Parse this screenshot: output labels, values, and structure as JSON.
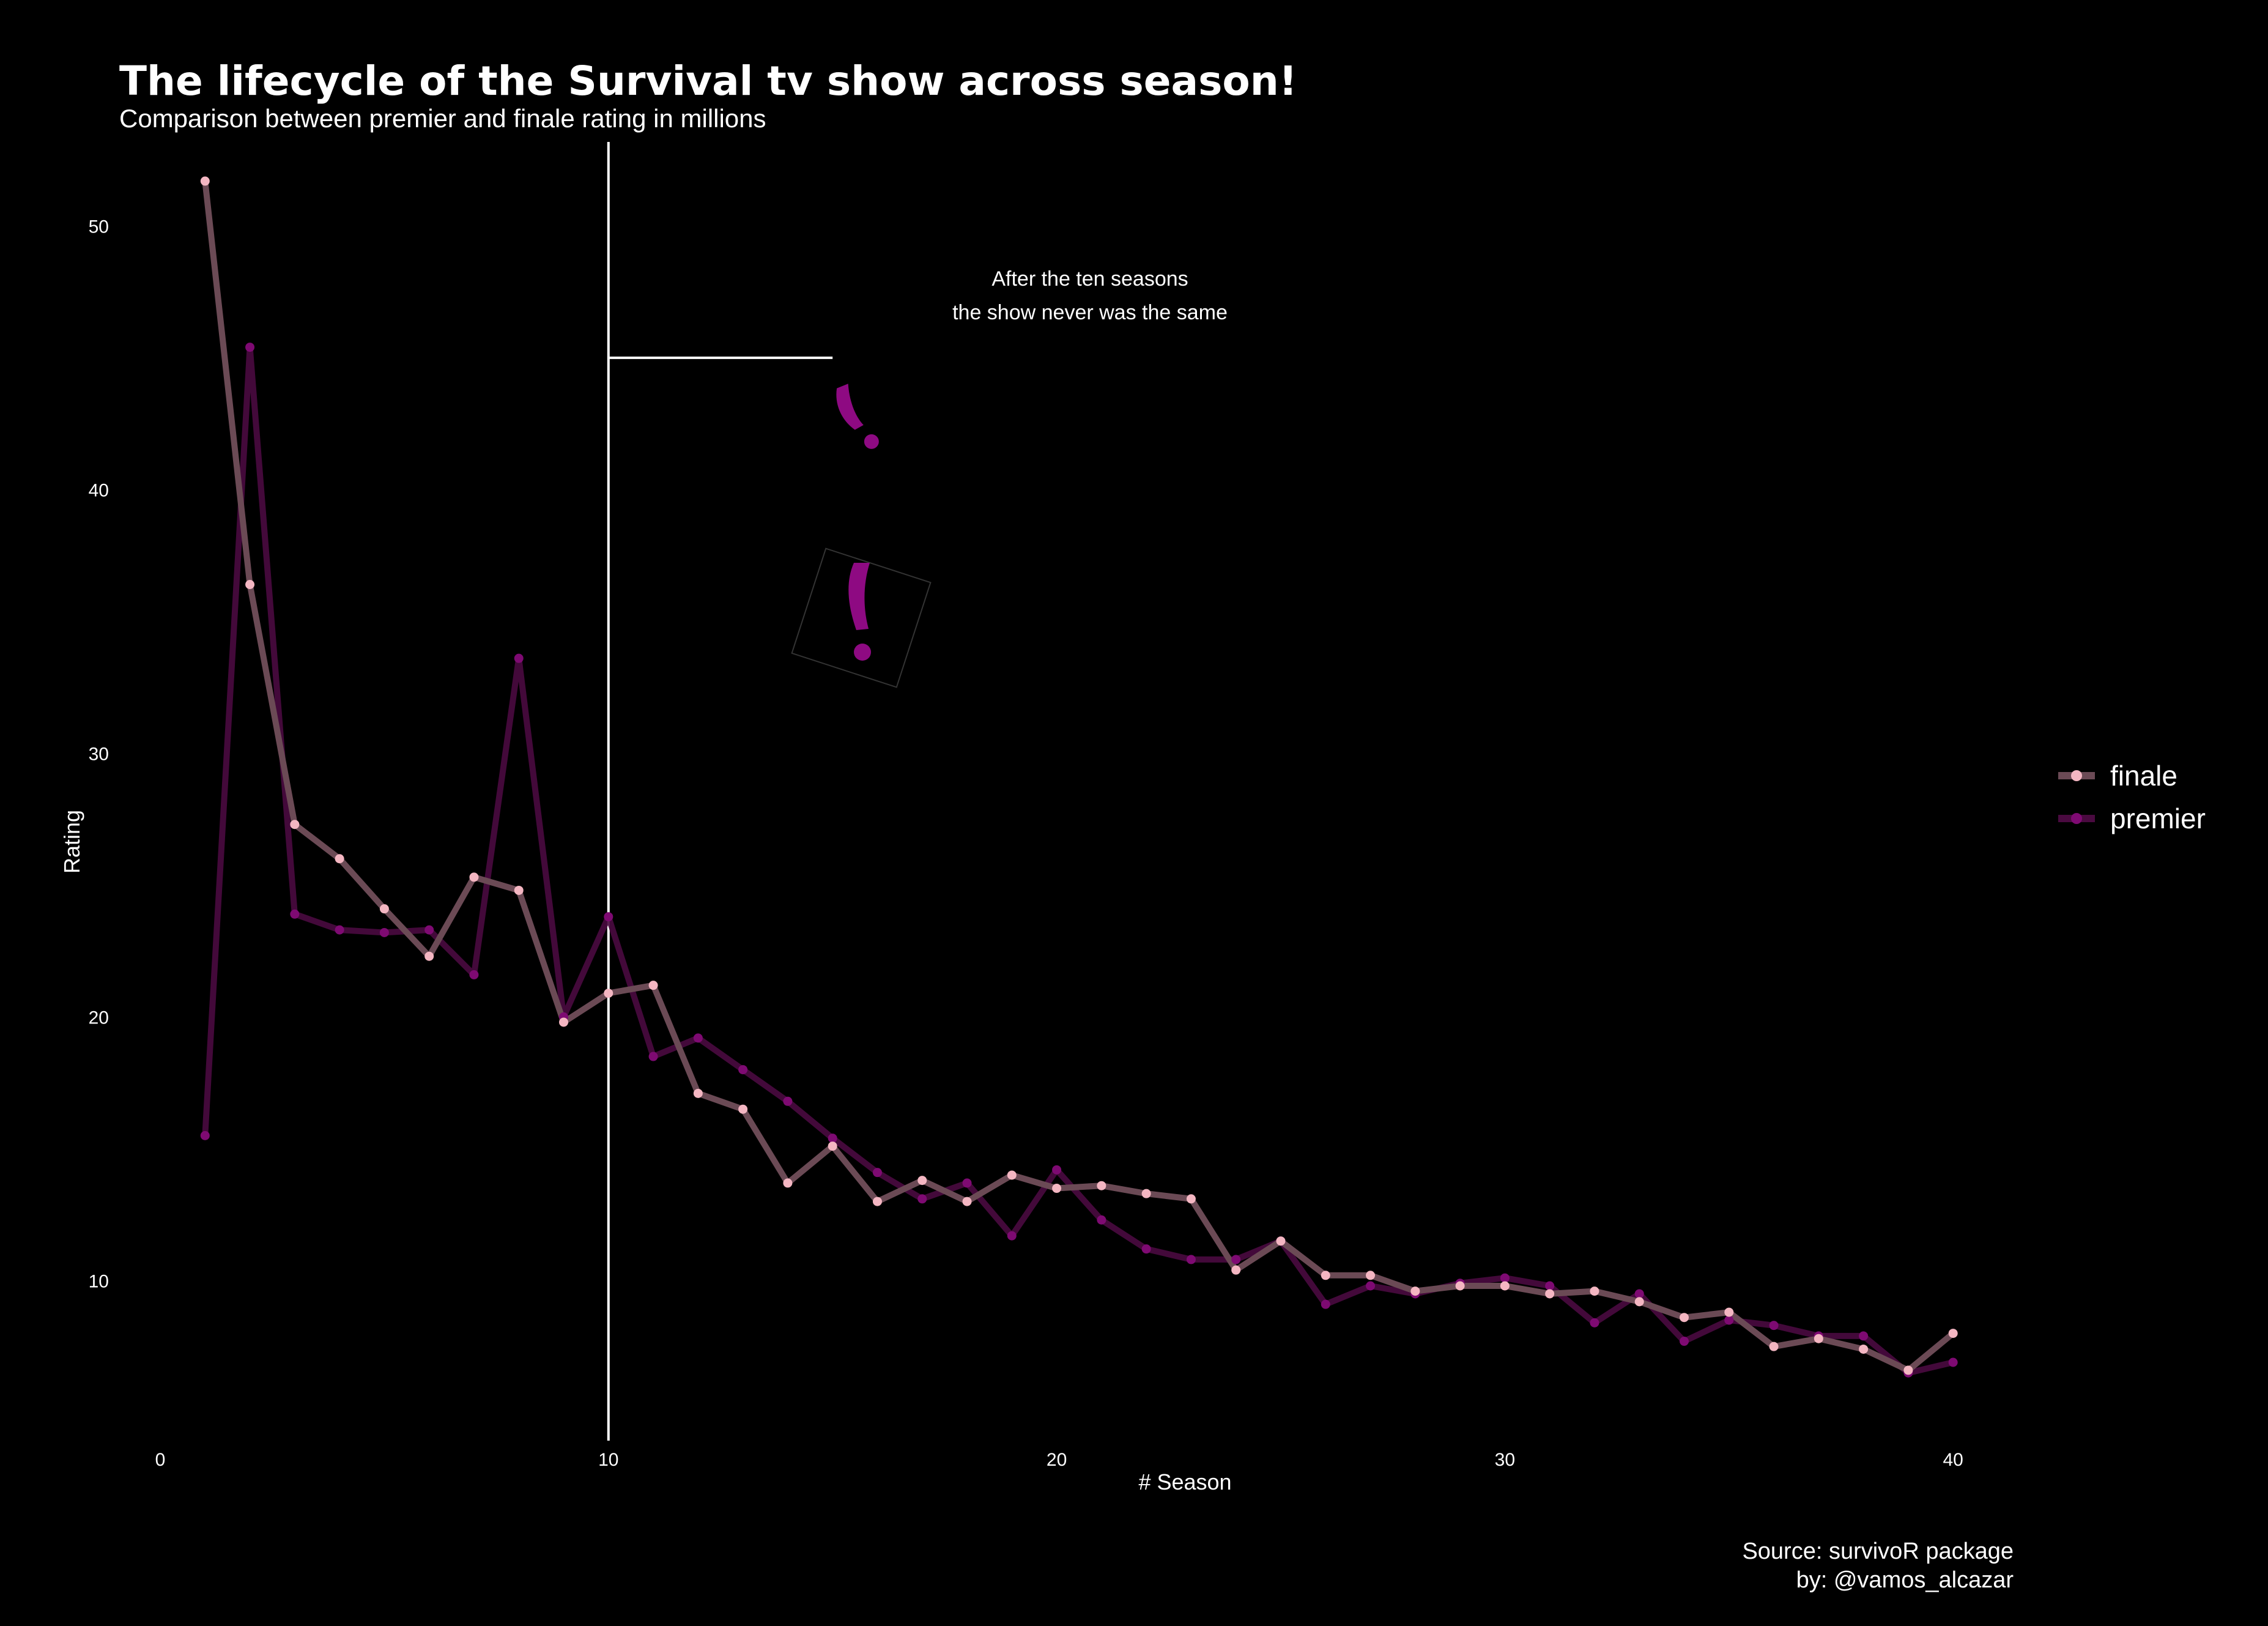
{
  "colors": {
    "background": "#000000",
    "finale_line": "#6b4a55",
    "finale_point": "#f4b6c2",
    "premier_line": "#4a0a40",
    "premier_point": "#7e0a72",
    "exclamation": "#8e0a82",
    "annotation_line": "#ffffff"
  },
  "chart_data": {
    "type": "line",
    "title": "The lifecycle of the Survival tv show across season!",
    "subtitle": "Comparison between premier and finale rating in millions",
    "xlabel": "# Season",
    "ylabel": "Rating",
    "xlim": [
      0,
      43
    ],
    "ylim": [
      4,
      53
    ],
    "xticks": [
      0,
      10,
      20,
      30,
      40
    ],
    "yticks": [
      10,
      20,
      30,
      40,
      50
    ],
    "grid": false,
    "legend_position": "right",
    "x": [
      1,
      2,
      3,
      4,
      5,
      6,
      7,
      8,
      9,
      10,
      11,
      12,
      13,
      14,
      15,
      16,
      17,
      18,
      19,
      20,
      21,
      22,
      23,
      24,
      25,
      26,
      27,
      28,
      29,
      30,
      31,
      32,
      33,
      34,
      35,
      36,
      37,
      38,
      39,
      40
    ],
    "series": [
      {
        "name": "finale",
        "values": [
          51.7,
          36.4,
          27.3,
          26.0,
          24.1,
          22.3,
          25.3,
          24.8,
          19.8,
          20.9,
          21.2,
          17.1,
          16.5,
          13.7,
          15.1,
          13.0,
          13.8,
          13.0,
          14.0,
          13.5,
          13.6,
          13.3,
          13.1,
          10.4,
          11.5,
          10.2,
          10.2,
          9.6,
          9.8,
          9.8,
          9.5,
          9.6,
          9.2,
          8.6,
          8.8,
          7.5,
          7.8,
          7.4,
          6.6,
          8.0
        ]
      },
      {
        "name": "premier",
        "values": [
          15.5,
          45.4,
          23.9,
          23.3,
          23.2,
          23.3,
          21.6,
          33.6,
          20.0,
          23.8,
          18.5,
          19.2,
          18.0,
          16.8,
          15.4,
          14.1,
          13.1,
          13.7,
          11.7,
          14.2,
          12.3,
          11.2,
          10.8,
          10.8,
          11.5,
          9.1,
          9.8,
          9.5,
          9.9,
          10.1,
          9.8,
          8.4,
          9.5,
          7.7,
          8.5,
          8.3,
          7.9,
          7.9,
          6.5,
          6.9
        ]
      }
    ],
    "annotation": {
      "text_lines": [
        "After the ten seasons",
        "the show never was the same"
      ],
      "vline_x": 10,
      "hline_y": 45,
      "hline_x_end": 15
    }
  },
  "caption": {
    "source": "Source: survivoR package",
    "author": "by: @vamos_alcazar"
  }
}
